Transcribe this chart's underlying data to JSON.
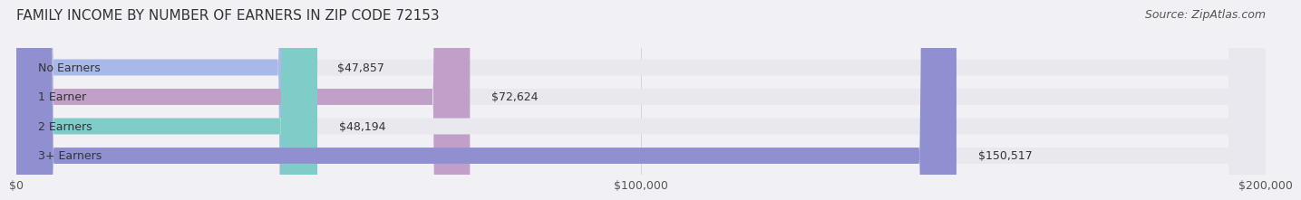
{
  "title": "FAMILY INCOME BY NUMBER OF EARNERS IN ZIP CODE 72153",
  "source": "Source: ZipAtlas.com",
  "categories": [
    "No Earners",
    "1 Earner",
    "2 Earners",
    "3+ Earners"
  ],
  "values": [
    47857,
    72624,
    48194,
    150517
  ],
  "bar_colors": [
    "#a8b8e8",
    "#c0a0c8",
    "#80ccc8",
    "#9090d0"
  ],
  "value_labels": [
    "$47,857",
    "$72,624",
    "$48,194",
    "$150,517"
  ],
  "xlim": [
    0,
    200000
  ],
  "xticks": [
    0,
    100000,
    200000
  ],
  "xtick_labels": [
    "$0",
    "$100,000",
    "$200,000"
  ],
  "bar_height": 0.55,
  "background_color": "#f0f0f5",
  "bar_bg_color": "#e8e8ee",
  "title_fontsize": 11,
  "source_fontsize": 9,
  "label_fontsize": 9,
  "value_fontsize": 9,
  "tick_fontsize": 9
}
